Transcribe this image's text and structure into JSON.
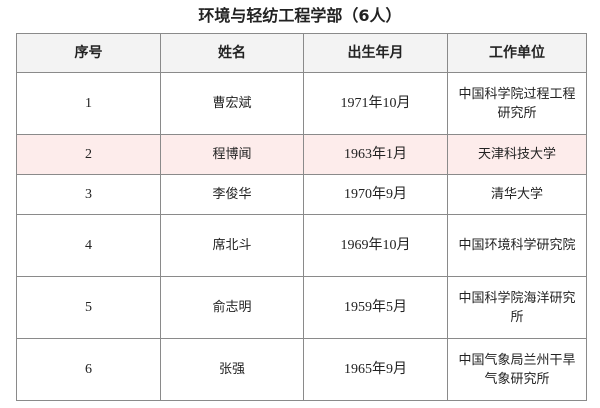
{
  "title": "环境与轻纺工程学部（6人）",
  "table": {
    "headers": [
      "序号",
      "姓名",
      "出生年月",
      "工作单位"
    ],
    "highlight_color": "#fdeceb",
    "rows": [
      {
        "no": "1",
        "name": "曹宏斌",
        "birth": "1971年10月",
        "org": "中国科学院过程工程研究所"
      },
      {
        "no": "2",
        "name": "程博闻",
        "birth": "1963年1月",
        "org": "天津科技大学"
      },
      {
        "no": "3",
        "name": "李俊华",
        "birth": "1970年9月",
        "org": "清华大学"
      },
      {
        "no": "4",
        "name": "席北斗",
        "birth": "1969年10月",
        "org": "中国环境科学研究院"
      },
      {
        "no": "5",
        "name": "俞志明",
        "birth": "1959年5月",
        "org": "中国科学院海洋研究所"
      },
      {
        "no": "6",
        "name": "张强",
        "birth": "1965年9月",
        "org": "中国气象局兰州干旱气象研究所"
      }
    ]
  }
}
